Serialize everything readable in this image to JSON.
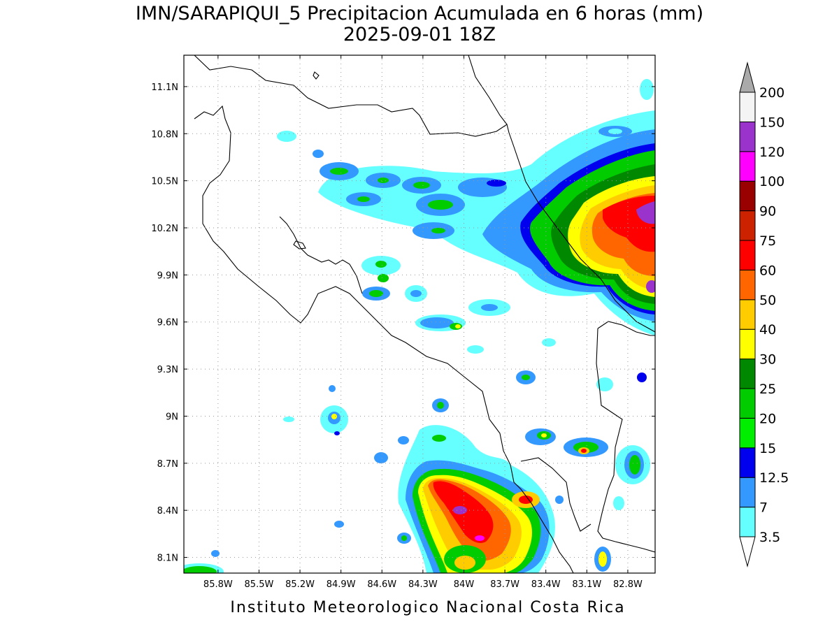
{
  "header": {
    "title_line1": "IMN/SARAPIQUI_5 Precipitacion Acumulada en 6 horas (mm)",
    "title_line2": "2025-09-01 18Z"
  },
  "footer": {
    "credit": "Instituto Meteorologico Nacional Costa Rica"
  },
  "map": {
    "lon_range": [
      -86.05,
      -82.6
    ],
    "lat_range": [
      8.0,
      11.3
    ],
    "lat_ticks": [
      "11.1N",
      "10.8N",
      "10.5N",
      "10.2N",
      "9.9N",
      "9.6N",
      "9.3N",
      "9N",
      "8.7N",
      "8.4N",
      "8.1N"
    ],
    "lon_ticks": [
      "85.8W",
      "85.5W",
      "85.2W",
      "84.9W",
      "84.6W",
      "84.3W",
      "84W",
      "83.7W",
      "83.4W",
      "83.1W",
      "82.8W"
    ],
    "gridlines": true
  },
  "colorbar": {
    "unit": "mm",
    "levels": [
      "3.5",
      "7",
      "12.5",
      "15",
      "20",
      "25",
      "30",
      "40",
      "50",
      "60",
      "75",
      "90",
      "100",
      "120",
      "150",
      "200"
    ],
    "colors": [
      "#66ffff",
      "#3399ff",
      "#0000ee",
      "#00ee00",
      "#00cc00",
      "#008800",
      "#ffff00",
      "#ffcc00",
      "#ff6600",
      "#ff0000",
      "#cc2200",
      "#990000",
      "#ff00ff",
      "#9933cc",
      "#f4f4f4"
    ],
    "over_color": "#aaaaaa",
    "under_color": "#ffffff"
  }
}
